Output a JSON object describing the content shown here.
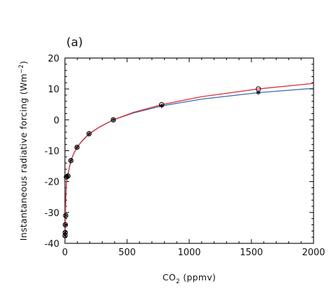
{
  "chart_data": {
    "type": "line",
    "panel_label": "(a)",
    "xlabel_main": "CO",
    "xlabel_sub": "2",
    "xlabel_unit": " (ppmv)",
    "ylabel_main": "Instantaneous radiative forcing (Wm",
    "ylabel_sup": "−2",
    "ylabel_end": ")",
    "xlim": [
      0,
      2000
    ],
    "ylim": [
      -40,
      20
    ],
    "x_ticks": [
      0,
      500,
      1000,
      1500,
      2000
    ],
    "y_ticks": [
      -40,
      -30,
      -20,
      -10,
      0,
      10,
      20
    ],
    "grid": false,
    "series": [
      {
        "marker": "circle",
        "color": "#e0303a",
        "x": [
          1,
          2,
          3,
          6,
          12,
          24,
          48,
          97,
          194,
          389,
          778,
          1556
        ],
        "y": [
          -37.5,
          -36.5,
          -34,
          -31,
          -18.5,
          -18.2,
          -13.2,
          -8.9,
          -4.5,
          0,
          4.9,
          10.0
        ]
      },
      {
        "marker": "asterisk",
        "color": "#3a6ab4",
        "x": [
          1,
          2,
          3,
          6,
          12,
          24,
          48,
          97,
          194,
          389,
          778,
          1556
        ],
        "y": [
          -37.5,
          -36.5,
          -34,
          -31,
          -18.5,
          -18.2,
          -13.2,
          -8.9,
          -4.6,
          0,
          4.5,
          8.8
        ]
      }
    ],
    "fit_curves": [
      {
        "color": "#e0303a",
        "x": [
          1,
          2,
          3,
          5,
          8,
          12,
          18,
          24,
          35,
          48,
          70,
          97,
          140,
          194,
          280,
          389,
          550,
          778,
          1100,
          1556,
          2000
        ],
        "y": [
          -38.5,
          -35.5,
          -32.5,
          -28.5,
          -24.0,
          -20.5,
          -18.6,
          -17.8,
          -15.5,
          -13.3,
          -11.0,
          -8.9,
          -6.7,
          -4.5,
          -2.3,
          0,
          2.4,
          4.9,
          7.5,
          10.0,
          11.8
        ]
      },
      {
        "color": "#3a6ab4",
        "x": [
          1,
          2,
          3,
          5,
          8,
          12,
          18,
          24,
          35,
          48,
          70,
          97,
          140,
          194,
          280,
          389,
          550,
          778,
          1100,
          1556,
          2000
        ],
        "y": [
          -38.5,
          -35.5,
          -32.5,
          -28.5,
          -24.0,
          -20.5,
          -18.6,
          -17.8,
          -15.5,
          -13.3,
          -11.0,
          -8.9,
          -6.8,
          -4.6,
          -2.3,
          0,
          2.2,
          4.5,
          6.7,
          8.8,
          10.2
        ]
      }
    ]
  }
}
